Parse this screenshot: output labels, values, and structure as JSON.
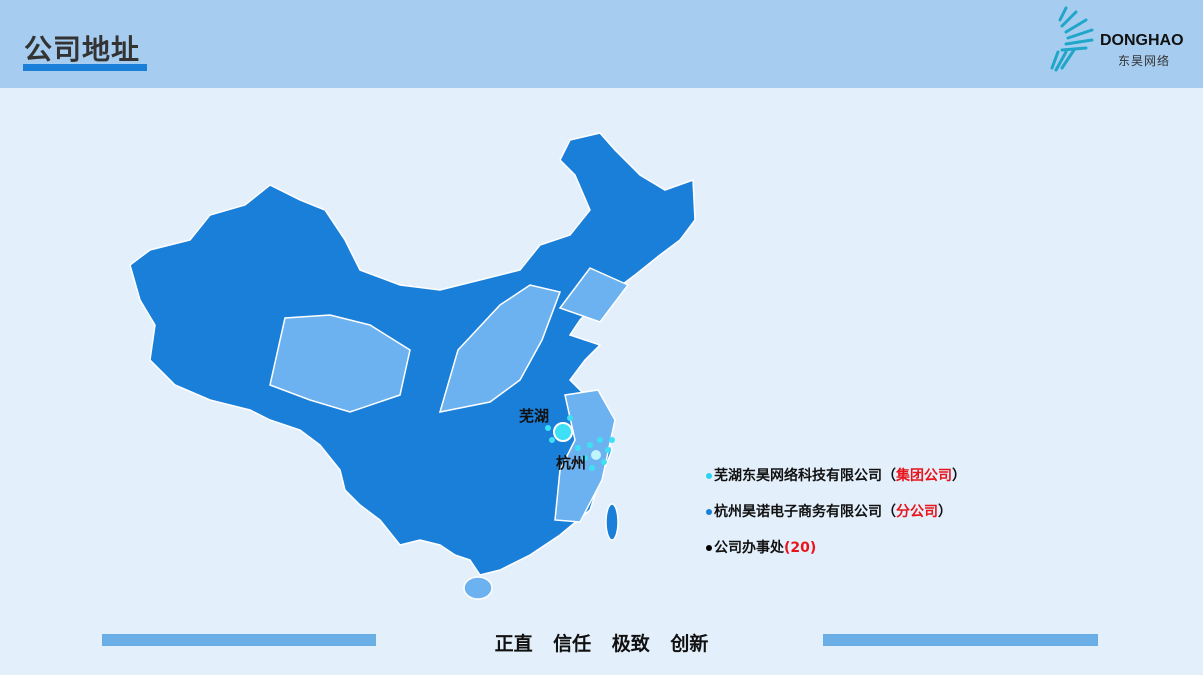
{
  "header": {
    "title": "公司地址"
  },
  "logo": {
    "name_en": "DONGHAO",
    "name_cn": "东昊网络"
  },
  "map": {
    "cities": [
      {
        "name": "芜湖"
      },
      {
        "name": "杭州"
      }
    ],
    "colors": {
      "province": "#1a7fd9",
      "highlight": "#6db2f0",
      "marker": "#3de0f5"
    }
  },
  "legend": [
    {
      "name": "芜湖东昊网络科技有限公司",
      "paren_open": "（",
      "tag": "集团公司",
      "paren_close": "）",
      "color": "#2ad4f0"
    },
    {
      "name": "杭州昊诺电子商务有限公司",
      "paren_open": "（",
      "tag": "分公司",
      "paren_close": "）",
      "color": "#1a7fd9"
    },
    {
      "name": "公司办事处",
      "paren_open": "(",
      "tag": "20",
      "paren_close": ")",
      "color": "#000000"
    }
  ],
  "footer": {
    "motto": "正直 信任 极致 创新"
  }
}
